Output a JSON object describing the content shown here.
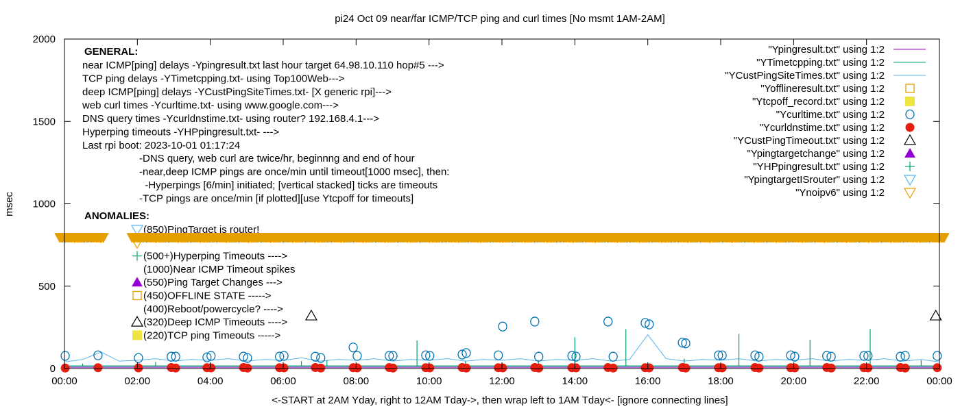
{
  "chart_data": {
    "type": "line",
    "title": "pi24 Oct 09  near/far ICMP/TCP ping and curl times [No msmt 1AM-2AM]",
    "xlabel": "<-START at 2AM Yday, right to 12AM Tday->, then wrap left to 1AM Tday<- [ignore connecting lines]",
    "ylabel": "msec",
    "xlim": [
      0,
      24
    ],
    "ylim": [
      0,
      2000
    ],
    "x_ticks": [
      "00:00",
      "02:00",
      "04:00",
      "06:00",
      "08:00",
      "10:00",
      "12:00",
      "14:00",
      "16:00",
      "18:00",
      "20:00",
      "22:00",
      "00:00"
    ],
    "y_ticks": [
      0,
      500,
      1000,
      1500,
      2000
    ],
    "grid": false,
    "legend_placement": "top-right",
    "legend": [
      {
        "label": "\"Ypingresult.txt\" using 1:2",
        "style": "line",
        "color": "#9400d3"
      },
      {
        "label": "\"YTimetcpping.txt\" using 1:2",
        "style": "line",
        "color": "#009e73"
      },
      {
        "label": "\"YCustPingSiteTimes.txt\" using 1:2",
        "style": "line",
        "color": "#56b4e9"
      },
      {
        "label": "\"Yofflineresult.txt\" using 1:2",
        "style": "open-square",
        "color": "#e69f00"
      },
      {
        "label": "\"Ytcpoff_record.txt\" using 1:2",
        "style": "filled-square",
        "color": "#f0e442"
      },
      {
        "label": "\"Ycurltime.txt\" using 1:2",
        "style": "open-circle",
        "color": "#0072b2"
      },
      {
        "label": "\"Ycurldnstime.txt\" using 1:2",
        "style": "filled-circle",
        "color": "#e51e10"
      },
      {
        "label": "\"YCustPingTimeout.txt\" using 1:2",
        "style": "open-triangle",
        "color": "#000000"
      },
      {
        "label": "\"Ypingtargetchange\" using 1:2",
        "style": "filled-triangle",
        "color": "#9400d3"
      },
      {
        "label": "\"YHPpingresult.txt\" using 1:2",
        "style": "plus",
        "color": "#009e73"
      },
      {
        "label": "\"YpingtargetISrouter\" using 1:2",
        "style": "open-down-triangle",
        "color": "#56b4e9"
      },
      {
        "label": "\"Ynoipv6\" using 1:2",
        "style": "open-down-triangle",
        "color": "#e69f00"
      }
    ],
    "series": {
      "Ypingresult": {
        "x": [
          0,
          24
        ],
        "y": [
          8,
          8
        ]
      },
      "YCustPingSiteTimes": {
        "x": [
          0,
          0.5,
          1,
          1.5,
          2,
          2.5,
          3,
          3.5,
          4,
          4.5,
          5,
          5.5,
          6,
          6.5,
          7,
          7.5,
          8,
          8.5,
          9,
          9.5,
          10,
          10.5,
          11,
          11.5,
          12,
          12.5,
          13,
          13.5,
          14,
          14.5,
          15,
          15.5,
          16,
          16.5,
          17,
          17.5,
          18,
          18.5,
          19,
          19.5,
          20,
          20.5,
          21,
          21.5,
          22,
          22.5,
          23,
          23.5,
          24
        ],
        "y": [
          40,
          55,
          100,
          45,
          50,
          60,
          45,
          55,
          50,
          60,
          45,
          55,
          50,
          65,
          45,
          55,
          50,
          60,
          45,
          55,
          50,
          60,
          45,
          55,
          50,
          60,
          45,
          55,
          50,
          60,
          45,
          55,
          205,
          60,
          45,
          55,
          50,
          60,
          45,
          55,
          50,
          60,
          45,
          55,
          50,
          60,
          45,
          55,
          40
        ]
      },
      "YTimetcpping": {
        "baseline": 15,
        "spikes": [
          [
            0.5,
            30
          ],
          [
            2.5,
            40
          ],
          [
            4,
            35
          ],
          [
            6.5,
            45
          ],
          [
            7.2,
            50
          ],
          [
            9.67,
            170
          ],
          [
            11,
            45
          ],
          [
            13,
            50
          ],
          [
            14,
            190
          ],
          [
            15.4,
            240
          ],
          [
            17,
            60
          ],
          [
            18.5,
            210
          ],
          [
            20.45,
            175
          ],
          [
            22.1,
            240
          ],
          [
            23.5,
            50
          ]
        ]
      },
      "Ycurltime": {
        "x": [
          0.02,
          0.92,
          2.03,
          2.93,
          3.05,
          3.91,
          4.02,
          4.91,
          5.02,
          5.9,
          6.02,
          6.88,
          7.03,
          7.92,
          8.03,
          8.91,
          9.01,
          9.91,
          10.02,
          10.91,
          11.02,
          11.9,
          12.02,
          12.9,
          13.01,
          13.92,
          14.03,
          14.91,
          15.05,
          15.93,
          16.04,
          16.95,
          17.04,
          17.94,
          18.04,
          18.94,
          19.05,
          19.92,
          20.03,
          20.91,
          21.03,
          21.93,
          22.04,
          22.93,
          23.06,
          23.94
        ],
        "y": [
          77,
          80,
          64,
          72,
          72,
          68,
          77,
          72,
          64,
          72,
          77,
          72,
          64,
          128,
          77,
          77,
          77,
          80,
          77,
          85,
          94,
          80,
          255,
          285,
          72,
          77,
          72,
          285,
          72,
          277,
          268,
          157,
          153,
          80,
          80,
          80,
          72,
          80,
          72,
          77,
          72,
          77,
          77,
          72,
          77,
          77
        ]
      },
      "Ycurldnstime": {
        "x": [
          0.02,
          0.92,
          2.03,
          2.93,
          3.05,
          3.91,
          4.02,
          4.91,
          5.02,
          5.9,
          6.02,
          6.88,
          7.03,
          7.92,
          8.03,
          8.91,
          9.01,
          9.91,
          10.02,
          10.91,
          11.02,
          11.9,
          12.02,
          12.9,
          13.01,
          13.92,
          14.03,
          14.91,
          15.05,
          15.93,
          16.04,
          16.95,
          17.04,
          17.94,
          18.04,
          18.94,
          19.05,
          19.92,
          20.03,
          20.91,
          21.03,
          21.93,
          22.04,
          22.93,
          23.06,
          23.94
        ],
        "y": [
          3,
          5,
          4,
          6,
          3,
          5,
          4,
          6,
          3,
          5,
          4,
          6,
          3,
          5,
          4,
          6,
          3,
          5,
          4,
          6,
          3,
          5,
          4,
          6,
          3,
          5,
          4,
          6,
          3,
          5,
          4,
          6,
          3,
          5,
          4,
          6,
          3,
          5,
          4,
          6,
          3,
          5,
          4,
          6,
          3,
          5
        ]
      },
      "YCustPingTimeout": {
        "x": [
          6.77,
          23.9
        ],
        "y": [
          320,
          320
        ]
      },
      "Ynoipv6": {
        "value": 795,
        "ranges": [
          [
            -0.13,
            1.1
          ],
          [
            1.85,
            24.15
          ]
        ]
      }
    },
    "general_heading": "GENERAL:",
    "general_lines": [
      "near ICMP[ping] delays -Ypingresult.txt last hour target 64.98.10.110 hop#5 --->",
      "TCP ping delays -YTimetcpping.txt- using Top100Web--->",
      "deep ICMP[ping] delays -YCustPingSiteTimes.txt- [X generic rpi]--->",
      "web curl times -Ycurltime.txt- using www.google.com--->",
      "DNS query times -Ycurldnstime.txt- using router? 192.168.4.1--->",
      "Hyperping timeouts -YHPpingresult.txt- --->",
      "Last rpi boot: 2023-10-01 01:17:24"
    ],
    "general_notes": [
      "-DNS query, web curl are twice/hr, beginnng and end of hour",
      "-near,deep ICMP pings are once/min until timeout[1000 msec], then:",
      "  -Hyperpings [6/min] initiated; [vertical stacked] ticks are timeouts",
      "-TCP pings are once/min [if plotted][use Ytcpoff for timeouts]"
    ],
    "anomalies_heading": "ANOMALIES:",
    "anomalies": [
      {
        "marker": "open-down-triangle",
        "color": "#56b4e9",
        "text": "(850)PingTarget is router!"
      },
      {
        "marker": "open-down-triangle",
        "color": "#e69f00",
        "text": ""
      },
      {
        "marker": "plus",
        "color": "#009e73",
        "text": "(500+)Hyperping Timeouts ---->"
      },
      {
        "marker": "none",
        "color": "",
        "text": "(1000)Near ICMP Timeout spikes"
      },
      {
        "marker": "filled-triangle",
        "color": "#9400d3",
        "text": "(550)Ping Target Changes --->"
      },
      {
        "marker": "open-square",
        "color": "#e69f00",
        "text": "(450)OFFLINE STATE ----->"
      },
      {
        "marker": "none",
        "color": "",
        "text": "(400)Reboot/powercycle? ---->"
      },
      {
        "marker": "open-triangle",
        "color": "#000000",
        "text": "(320)Deep ICMP Timeouts ---->"
      },
      {
        "marker": "filled-square",
        "color": "#f0e442",
        "text": "(220)TCP ping Timeouts ----->"
      }
    ]
  }
}
